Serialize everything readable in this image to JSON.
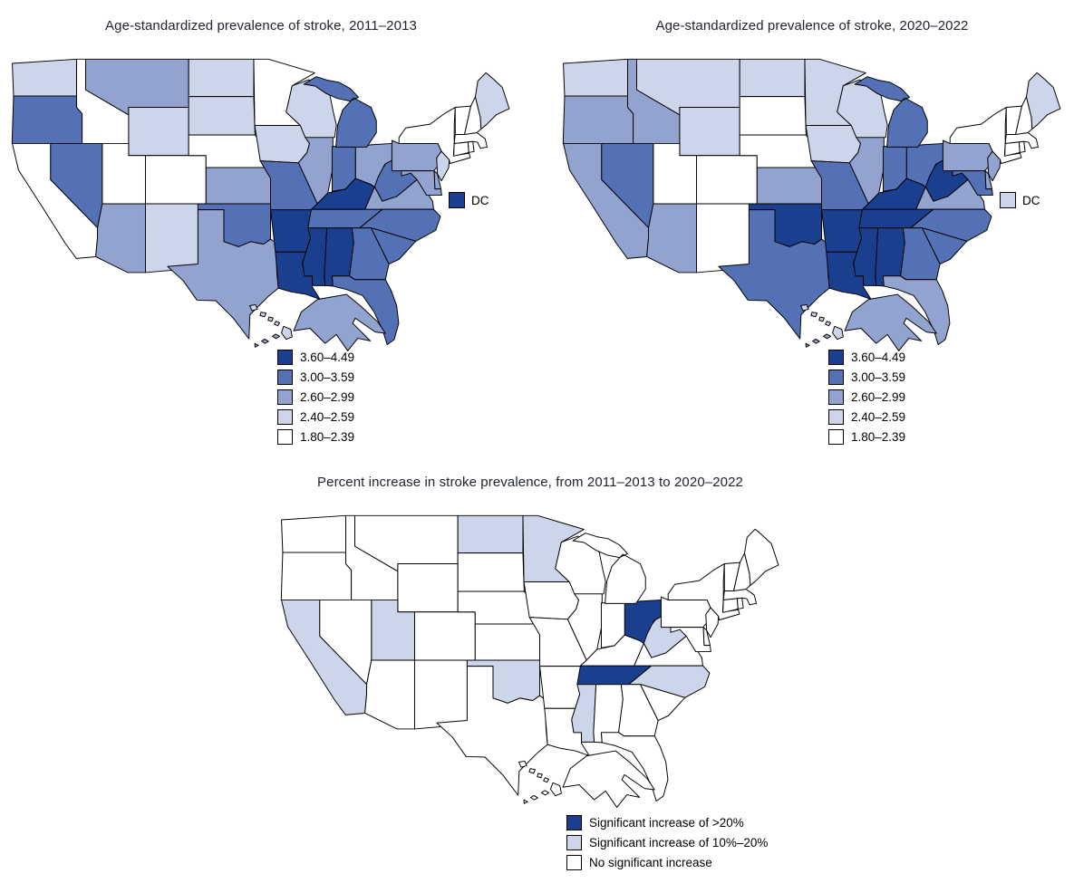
{
  "figure": {
    "background": "#ffffff",
    "state_border_color": "#000000",
    "title_color": "#20242e"
  },
  "chart_data": [
    {
      "type": "heatmap",
      "subtype": "us-state-choropleth",
      "title": "Age-standardized prevalence of stroke, 2011–2013",
      "unit": "percent",
      "legend_position": "lower-center",
      "legend": [
        {
          "label": "3.60–4.49",
          "color": "#1b3f8f"
        },
        {
          "label": "3.00–3.59",
          "color": "#5471b5"
        },
        {
          "label": "2.60–2.99",
          "color": "#93a3cf"
        },
        {
          "label": "2.40–2.59",
          "color": "#ccd5ea"
        },
        {
          "label": "1.80–2.39",
          "color": "#ffffff"
        }
      ],
      "dc_callout": {
        "label": "DC",
        "value": "3.60–4.49",
        "color": "#1b3f8f"
      },
      "states": {
        "AL": "3.60–4.49",
        "AK": "2.60–2.99",
        "AZ": "2.60–2.99",
        "AR": "3.60–4.49",
        "CA": "1.80–2.39",
        "CO": "1.80–2.39",
        "CT": "1.80–2.39",
        "DE": "2.60–2.99",
        "FL": "3.00–3.59",
        "GA": "3.00–3.59",
        "HI": "2.40–2.59",
        "ID": "1.80–2.39",
        "IL": "2.60–2.99",
        "IN": "3.00–3.59",
        "IA": "2.40–2.59",
        "KS": "2.60–2.99",
        "KY": "3.60–4.49",
        "LA": "3.60–4.49",
        "ME": "2.40–2.59",
        "MD": "2.60–2.99",
        "MA": "1.80–2.39",
        "MI": "3.00–3.59",
        "MN": "1.80–2.39",
        "MS": "3.60–4.49",
        "MO": "3.00–3.59",
        "MT": "2.60–2.99",
        "NE": "1.80–2.39",
        "NV": "3.00–3.59",
        "NH": "1.80–2.39",
        "NJ": "2.40–2.59",
        "NM": "2.40–2.59",
        "NY": "1.80–2.39",
        "NC": "3.00–3.59",
        "ND": "2.40–2.59",
        "OH": "2.60–2.99",
        "OK": "3.00–3.59",
        "OR": "3.00–3.59",
        "PA": "2.60–2.99",
        "RI": "1.80–2.39",
        "SC": "3.00–3.59",
        "SD": "2.40–2.59",
        "TN": "3.00–3.59",
        "TX": "2.60–2.99",
        "UT": "1.80–2.39",
        "VT": "1.80–2.39",
        "VA": "2.60–2.99",
        "WA": "2.40–2.59",
        "WV": "3.00–3.59",
        "WI": "2.40–2.59",
        "WY": "2.40–2.59"
      }
    },
    {
      "type": "heatmap",
      "subtype": "us-state-choropleth",
      "title": "Age-standardized prevalence of stroke, 2020–2022",
      "unit": "percent",
      "legend_position": "lower-center",
      "legend": [
        {
          "label": "3.60–4.49",
          "color": "#1b3f8f"
        },
        {
          "label": "3.00–3.59",
          "color": "#5471b5"
        },
        {
          "label": "2.60–2.99",
          "color": "#93a3cf"
        },
        {
          "label": "2.40–2.59",
          "color": "#ccd5ea"
        },
        {
          "label": "1.80–2.39",
          "color": "#ffffff"
        }
      ],
      "dc_callout": {
        "label": "DC",
        "value": "2.40–2.59",
        "color": "#ccd5ea"
      },
      "states": {
        "AL": "3.60–4.49",
        "AK": "2.60–2.99",
        "AZ": "2.60–2.99",
        "AR": "3.60–4.49",
        "CA": "2.60–2.99",
        "CO": "1.80–2.39",
        "CT": "1.80–2.39",
        "DE": "2.60–2.99",
        "FL": "2.60–2.99",
        "GA": "3.00–3.59",
        "HI": "2.40–2.59",
        "ID": "2.60–2.99",
        "IL": "2.60–2.99",
        "IN": "3.00–3.59",
        "IA": "2.40–2.59",
        "KS": "2.60–2.99",
        "KY": "3.60–4.49",
        "LA": "3.60–4.49",
        "ME": "2.40–2.59",
        "MD": "3.00–3.59",
        "MA": "1.80–2.39",
        "MI": "3.00–3.59",
        "MN": "2.40–2.59",
        "MS": "3.60–4.49",
        "MO": "3.00–3.59",
        "MT": "2.40–2.59",
        "NE": "1.80–2.39",
        "NV": "3.00–3.59",
        "NH": "1.80–2.39",
        "NJ": "2.60–2.99",
        "NM": "1.80–2.39",
        "NY": "1.80–2.39",
        "NC": "3.00–3.59",
        "ND": "2.40–2.59",
        "OH": "3.00–3.59",
        "OK": "3.60–4.49",
        "OR": "2.60–2.99",
        "PA": "2.60–2.99",
        "RI": "1.80–2.39",
        "SC": "3.00–3.59",
        "SD": "1.80–2.39",
        "TN": "3.60–4.49",
        "TX": "3.00–3.59",
        "UT": "1.80–2.39",
        "VT": "1.80–2.39",
        "VA": "2.60–2.99",
        "WA": "2.40–2.59",
        "WV": "3.60–4.49",
        "WI": "2.40–2.59",
        "WY": "2.40–2.59"
      }
    },
    {
      "type": "heatmap",
      "subtype": "us-state-choropleth",
      "title": "Percent increase in stroke prevalence, from 2011–2013 to 2020–2022",
      "unit": "percent change category",
      "legend_position": "lower-center",
      "legend": [
        {
          "label": "Significant increase of >20%",
          "key": ">20%",
          "color": "#1b3f8f"
        },
        {
          "label": "Significant increase of 10%–20%",
          "key": "10%–20%",
          "color": "#ccd5ea"
        },
        {
          "label": "No significant increase",
          "key": "none",
          "color": "#ffffff"
        }
      ],
      "states": {
        "AL": "none",
        "AK": "none",
        "AZ": "none",
        "AR": "none",
        "CA": "10%–20%",
        "CO": "none",
        "CT": "none",
        "DE": "none",
        "FL": "none",
        "GA": "none",
        "HI": "none",
        "ID": "none",
        "IL": "none",
        "IN": "none",
        "IA": "none",
        "KS": "none",
        "KY": "none",
        "LA": "none",
        "ME": "none",
        "MD": "none",
        "MA": "none",
        "MI": "none",
        "MN": "10%–20%",
        "MS": "10%–20%",
        "MO": "none",
        "MT": "none",
        "NE": "none",
        "NV": "none",
        "NH": "none",
        "NJ": "none",
        "NM": "none",
        "NY": "none",
        "NC": "10%–20%",
        "ND": "10%–20%",
        "OH": ">20%",
        "OK": "10%–20%",
        "OR": "none",
        "PA": "none",
        "RI": "none",
        "SC": "none",
        "SD": "none",
        "TN": ">20%",
        "TX": "none",
        "UT": "10%–20%",
        "VT": "none",
        "VA": "none",
        "WA": "none",
        "WV": "10%–20%",
        "WI": "none",
        "WY": "none"
      }
    }
  ]
}
